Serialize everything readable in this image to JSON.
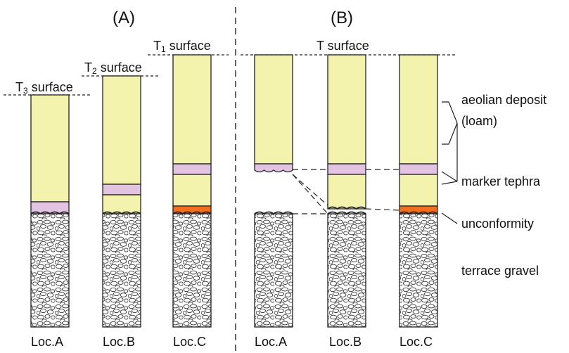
{
  "panels": {
    "a_title": "(A)",
    "b_title": "(B)"
  },
  "surfaces": {
    "t3_prefix": "T",
    "t3_sub": "3",
    "t3_suffix": " surface",
    "t2_prefix": "T",
    "t2_sub": "2",
    "t2_suffix": " surface",
    "t1_prefix": "T",
    "t1_sub": "1",
    "t1_suffix": " surface",
    "t": "T surface"
  },
  "locations": [
    "Loc.A",
    "Loc.B",
    "Loc.C",
    "Loc.A",
    "Loc.B",
    "Loc.C"
  ],
  "legend": {
    "aeolian_line1": "aeolian deposit",
    "aeolian_line2": "(loam)",
    "tephra": "marker tephra",
    "unconformity": "unconformity",
    "gravel": "terrace gravel"
  },
  "colors": {
    "loam": "#f3f3ae",
    "tephra": "#e2c3e2",
    "unconformity_fill": "#f36f1e",
    "gravel_bg": "#ffffff",
    "outline": "#222222"
  }
}
